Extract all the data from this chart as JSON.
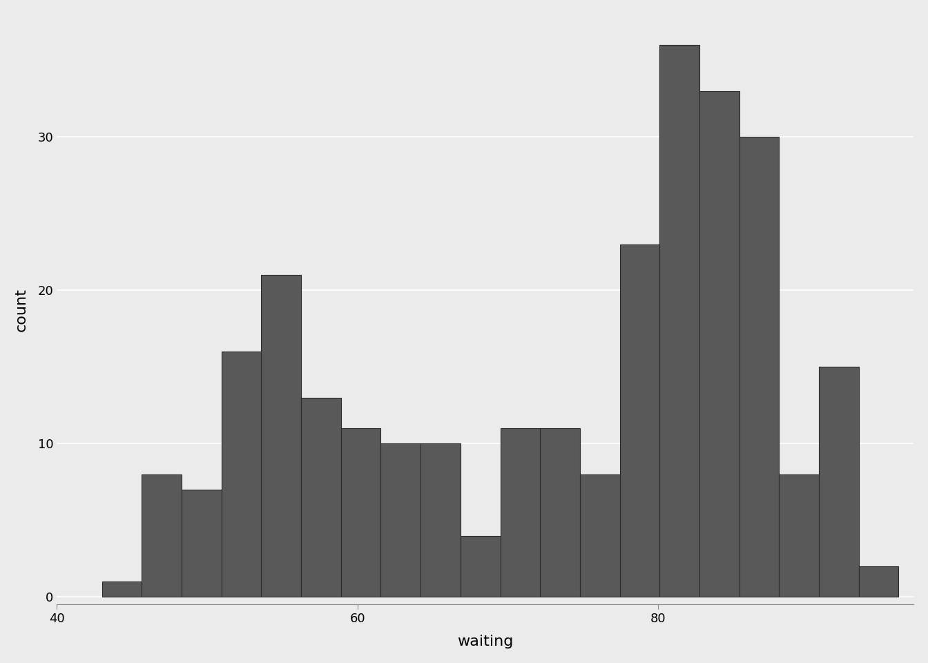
{
  "title": "",
  "xlabel": "waiting",
  "ylabel": "count",
  "bar_color": "#595959",
  "bar_edge_color": "#2a2a2a",
  "background_color": "#ebebeb",
  "grid_color": "#ffffff",
  "xlim": [
    40,
    97
  ],
  "ylim": [
    -0.5,
    38
  ],
  "yticks": [
    0,
    10,
    20,
    30
  ],
  "xticks": [
    40,
    60,
    80
  ],
  "xlabel_fontsize": 16,
  "ylabel_fontsize": 16,
  "tick_fontsize": 13,
  "bin_edges": [
    43.0,
    45.65,
    48.3,
    50.95,
    53.6,
    56.25,
    58.9,
    61.55,
    64.2,
    66.85,
    69.5,
    72.15,
    74.8,
    77.45,
    80.1,
    82.75,
    85.4,
    88.05,
    90.7,
    93.35,
    96.0
  ],
  "counts": [
    1,
    8,
    7,
    16,
    21,
    13,
    11,
    10,
    10,
    4,
    11,
    11,
    8,
    23,
    36,
    33,
    30,
    8,
    15,
    2
  ]
}
